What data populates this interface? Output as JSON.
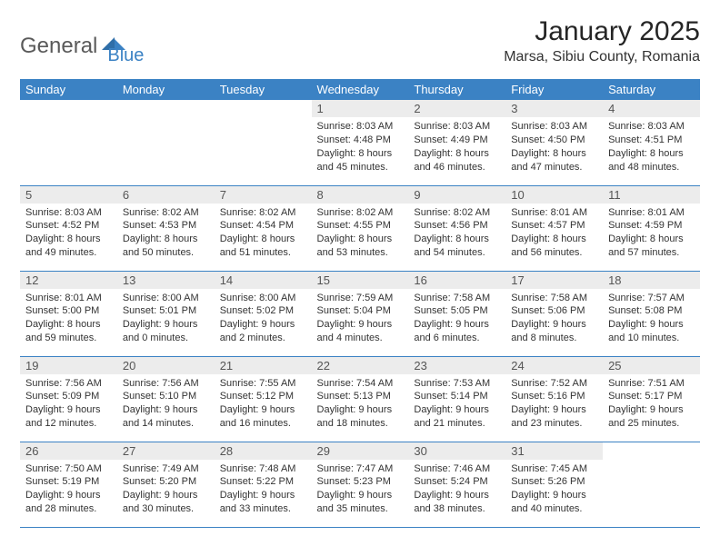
{
  "brand": {
    "name1": "General",
    "name2": "Blue"
  },
  "title": "January 2025",
  "location": "Marsa, Sibiu County, Romania",
  "colors": {
    "header_bg": "#3b82c4",
    "header_fg": "#ffffff",
    "daynum_bg": "#ececec",
    "border": "#3b82c4",
    "text": "#333333"
  },
  "weekdays": [
    "Sunday",
    "Monday",
    "Tuesday",
    "Wednesday",
    "Thursday",
    "Friday",
    "Saturday"
  ],
  "layout": {
    "first_weekday_index": 3,
    "days_in_month": 31
  },
  "days": [
    {
      "n": 1,
      "sunrise": "8:03 AM",
      "sunset": "4:48 PM",
      "dl_h": 8,
      "dl_m": 45
    },
    {
      "n": 2,
      "sunrise": "8:03 AM",
      "sunset": "4:49 PM",
      "dl_h": 8,
      "dl_m": 46
    },
    {
      "n": 3,
      "sunrise": "8:03 AM",
      "sunset": "4:50 PM",
      "dl_h": 8,
      "dl_m": 47
    },
    {
      "n": 4,
      "sunrise": "8:03 AM",
      "sunset": "4:51 PM",
      "dl_h": 8,
      "dl_m": 48
    },
    {
      "n": 5,
      "sunrise": "8:03 AM",
      "sunset": "4:52 PM",
      "dl_h": 8,
      "dl_m": 49
    },
    {
      "n": 6,
      "sunrise": "8:02 AM",
      "sunset": "4:53 PM",
      "dl_h": 8,
      "dl_m": 50
    },
    {
      "n": 7,
      "sunrise": "8:02 AM",
      "sunset": "4:54 PM",
      "dl_h": 8,
      "dl_m": 51
    },
    {
      "n": 8,
      "sunrise": "8:02 AM",
      "sunset": "4:55 PM",
      "dl_h": 8,
      "dl_m": 53
    },
    {
      "n": 9,
      "sunrise": "8:02 AM",
      "sunset": "4:56 PM",
      "dl_h": 8,
      "dl_m": 54
    },
    {
      "n": 10,
      "sunrise": "8:01 AM",
      "sunset": "4:57 PM",
      "dl_h": 8,
      "dl_m": 56
    },
    {
      "n": 11,
      "sunrise": "8:01 AM",
      "sunset": "4:59 PM",
      "dl_h": 8,
      "dl_m": 57
    },
    {
      "n": 12,
      "sunrise": "8:01 AM",
      "sunset": "5:00 PM",
      "dl_h": 8,
      "dl_m": 59
    },
    {
      "n": 13,
      "sunrise": "8:00 AM",
      "sunset": "5:01 PM",
      "dl_h": 9,
      "dl_m": 0
    },
    {
      "n": 14,
      "sunrise": "8:00 AM",
      "sunset": "5:02 PM",
      "dl_h": 9,
      "dl_m": 2
    },
    {
      "n": 15,
      "sunrise": "7:59 AM",
      "sunset": "5:04 PM",
      "dl_h": 9,
      "dl_m": 4
    },
    {
      "n": 16,
      "sunrise": "7:58 AM",
      "sunset": "5:05 PM",
      "dl_h": 9,
      "dl_m": 6
    },
    {
      "n": 17,
      "sunrise": "7:58 AM",
      "sunset": "5:06 PM",
      "dl_h": 9,
      "dl_m": 8
    },
    {
      "n": 18,
      "sunrise": "7:57 AM",
      "sunset": "5:08 PM",
      "dl_h": 9,
      "dl_m": 10
    },
    {
      "n": 19,
      "sunrise": "7:56 AM",
      "sunset": "5:09 PM",
      "dl_h": 9,
      "dl_m": 12
    },
    {
      "n": 20,
      "sunrise": "7:56 AM",
      "sunset": "5:10 PM",
      "dl_h": 9,
      "dl_m": 14
    },
    {
      "n": 21,
      "sunrise": "7:55 AM",
      "sunset": "5:12 PM",
      "dl_h": 9,
      "dl_m": 16
    },
    {
      "n": 22,
      "sunrise": "7:54 AM",
      "sunset": "5:13 PM",
      "dl_h": 9,
      "dl_m": 18
    },
    {
      "n": 23,
      "sunrise": "7:53 AM",
      "sunset": "5:14 PM",
      "dl_h": 9,
      "dl_m": 21
    },
    {
      "n": 24,
      "sunrise": "7:52 AM",
      "sunset": "5:16 PM",
      "dl_h": 9,
      "dl_m": 23
    },
    {
      "n": 25,
      "sunrise": "7:51 AM",
      "sunset": "5:17 PM",
      "dl_h": 9,
      "dl_m": 25
    },
    {
      "n": 26,
      "sunrise": "7:50 AM",
      "sunset": "5:19 PM",
      "dl_h": 9,
      "dl_m": 28
    },
    {
      "n": 27,
      "sunrise": "7:49 AM",
      "sunset": "5:20 PM",
      "dl_h": 9,
      "dl_m": 30
    },
    {
      "n": 28,
      "sunrise": "7:48 AM",
      "sunset": "5:22 PM",
      "dl_h": 9,
      "dl_m": 33
    },
    {
      "n": 29,
      "sunrise": "7:47 AM",
      "sunset": "5:23 PM",
      "dl_h": 9,
      "dl_m": 35
    },
    {
      "n": 30,
      "sunrise": "7:46 AM",
      "sunset": "5:24 PM",
      "dl_h": 9,
      "dl_m": 38
    },
    {
      "n": 31,
      "sunrise": "7:45 AM",
      "sunset": "5:26 PM",
      "dl_h": 9,
      "dl_m": 40
    }
  ],
  "labels": {
    "sunrise": "Sunrise:",
    "sunset": "Sunset:",
    "daylight": "Daylight:",
    "hours": "hours",
    "and": "and",
    "minutes": "minutes."
  }
}
